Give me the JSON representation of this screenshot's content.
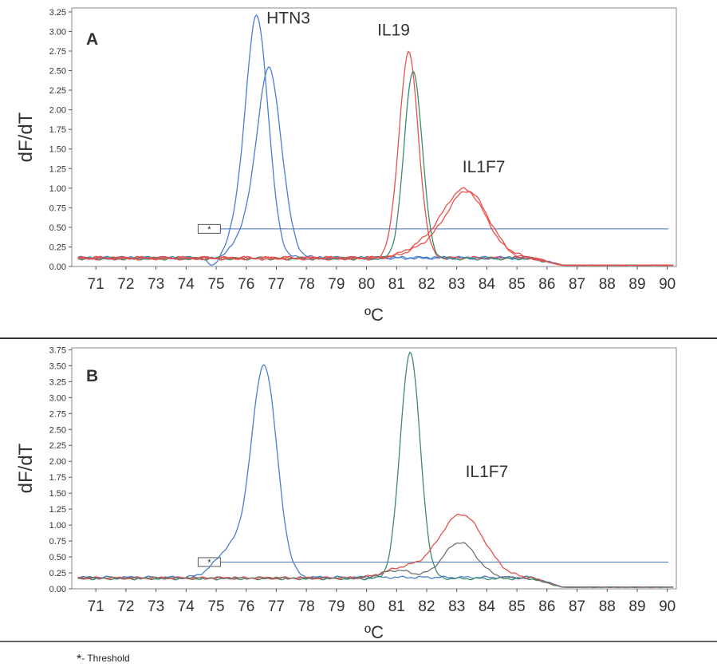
{
  "footnote": {
    "symbol": "*",
    "text": "- Threshold"
  },
  "colors": {
    "blue": "#4a7fd0",
    "green": "#3f8a6a",
    "red": "#e8504a",
    "gray": "#707070",
    "threshold": "#4a73b8"
  },
  "chart_data": [
    {
      "type": "line",
      "panel_label": "A",
      "xlabel": "ºC",
      "ylabel": "dF/dT",
      "xlim": [
        70.2,
        90.3
      ],
      "ylim": [
        0,
        3.3
      ],
      "x_ticks": [
        "71",
        "72",
        "73",
        "74",
        "75",
        "76",
        "77",
        "78",
        "79",
        "80",
        "81",
        "82",
        "83",
        "84",
        "85",
        "86",
        "87",
        "88",
        "89",
        "90"
      ],
      "y_ticks": [
        "0.00",
        "0.25",
        "0.50",
        "0.75",
        "1.00",
        "1.25",
        "1.50",
        "1.75",
        "2.00",
        "2.25",
        "2.50",
        "2.75",
        "3.00",
        "3.25"
      ],
      "threshold": 0.48,
      "threshold_marker": "*",
      "annotations": [
        {
          "text": "HTN3",
          "x": 77.4,
          "y": 3.1
        },
        {
          "text": "IL19",
          "x": 80.9,
          "y": 2.95
        },
        {
          "text": "IL1F7",
          "x": 83.9,
          "y": 1.2
        }
      ],
      "series": [
        {
          "color": "blue",
          "baseline": 0.11,
          "peaks": [
            [
              76.35,
              3.08,
              0.38
            ],
            [
              75.6,
              0.18,
              0.3
            ]
          ],
          "dip": [
            74.9,
            0.12
          ]
        },
        {
          "color": "blue",
          "baseline": 0.11,
          "peaks": [
            [
              76.75,
              2.42,
              0.42
            ],
            [
              75.8,
              0.2,
              0.3
            ]
          ]
        },
        {
          "color": "red",
          "baseline": 0.11,
          "peaks": [
            [
              81.4,
              2.62,
              0.32
            ]
          ]
        },
        {
          "color": "green",
          "baseline": 0.1,
          "peaks": [
            [
              81.55,
              2.4,
              0.3
            ]
          ]
        },
        {
          "color": "red",
          "baseline": 0.1,
          "peaks": [
            [
              83.25,
              0.88,
              0.72
            ],
            [
              81.8,
              0.12,
              0.6
            ]
          ]
        },
        {
          "color": "red",
          "baseline": 0.11,
          "peaks": [
            [
              83.35,
              0.85,
              0.7
            ],
            [
              81.9,
              0.1,
              0.6
            ]
          ]
        }
      ]
    },
    {
      "type": "line",
      "panel_label": "B",
      "xlabel": "ºC",
      "ylabel": "dF/dT",
      "xlim": [
        70.2,
        90.3
      ],
      "ylim": [
        0,
        3.78
      ],
      "x_ticks": [
        "71",
        "72",
        "73",
        "74",
        "75",
        "76",
        "77",
        "78",
        "79",
        "80",
        "81",
        "82",
        "83",
        "84",
        "85",
        "86",
        "87",
        "88",
        "89",
        "90"
      ],
      "y_ticks": [
        "0.00",
        "0.25",
        "0.50",
        "0.75",
        "1.00",
        "1.25",
        "1.50",
        "1.75",
        "2.00",
        "2.25",
        "2.50",
        "2.75",
        "3.00",
        "3.25",
        "3.50",
        "3.75"
      ],
      "threshold": 0.42,
      "threshold_marker": "*",
      "annotations": [
        {
          "text": "IL1F7",
          "x": 84.0,
          "y": 1.75
        }
      ],
      "series": [
        {
          "color": "blue",
          "baseline": 0.18,
          "peaks": [
            [
              76.6,
              3.3,
              0.42
            ],
            [
              75.5,
              0.45,
              0.5
            ]
          ]
        },
        {
          "color": "green",
          "baseline": 0.16,
          "peaks": [
            [
              81.45,
              3.55,
              0.33
            ]
          ]
        },
        {
          "color": "red",
          "baseline": 0.17,
          "peaks": [
            [
              83.15,
              1.0,
              0.75
            ],
            [
              81.2,
              0.15,
              0.6
            ]
          ]
        },
        {
          "color": "gray",
          "baseline": 0.17,
          "peaks": [
            [
              83.1,
              0.56,
              0.55
            ],
            [
              81.0,
              0.12,
              0.5
            ]
          ]
        }
      ]
    }
  ]
}
